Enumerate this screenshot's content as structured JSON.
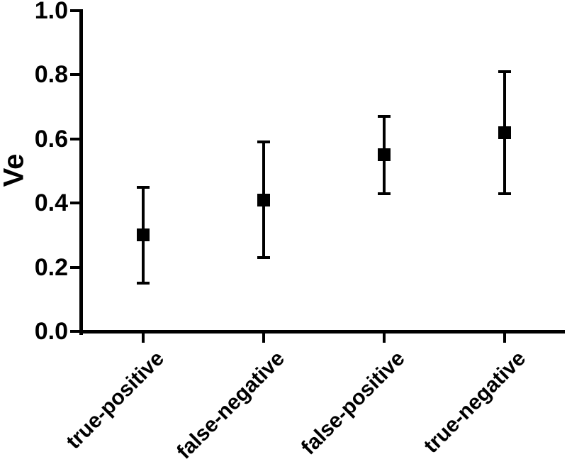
{
  "chart_data": {
    "type": "scatter",
    "title": "",
    "xlabel": "",
    "ylabel": "Ve",
    "ylim": [
      0.0,
      1.0
    ],
    "yticks": [
      0.0,
      0.2,
      0.4,
      0.6,
      0.8,
      1.0
    ],
    "categories": [
      "true-positive",
      "false-negative",
      "false-positive",
      "true-negative"
    ],
    "series": [
      {
        "name": "Ve",
        "values": [
          0.3,
          0.41,
          0.55,
          0.62
        ],
        "error_low": [
          0.15,
          0.23,
          0.43,
          0.43
        ],
        "error_high": [
          0.45,
          0.59,
          0.67,
          0.81
        ]
      }
    ],
    "marker": "filled-square",
    "error_bar_style": "vertical-line-with-caps",
    "x_tick_label_rotation_deg": 45,
    "grid": false,
    "legend": false,
    "color": "#000000",
    "background": "#ffffff"
  }
}
